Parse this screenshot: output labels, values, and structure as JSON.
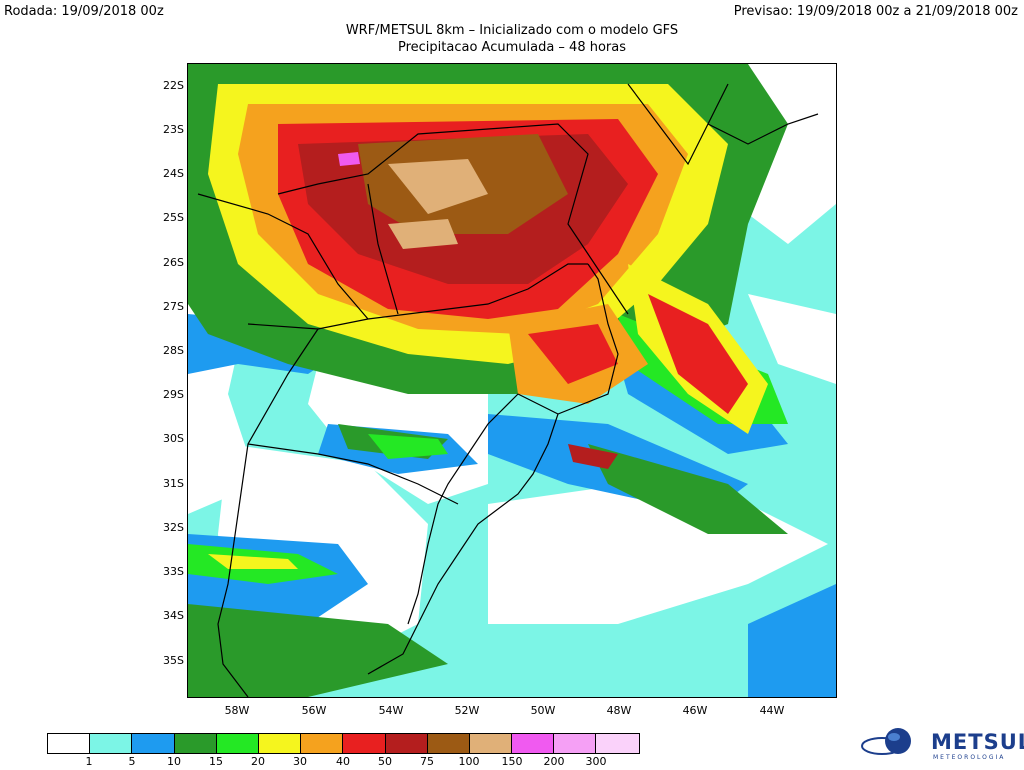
{
  "header": {
    "run_label": "Rodada: 19/09/2018 00z",
    "forecast_label": "Previsao: 19/09/2018 00z a 21/09/2018 00z",
    "title_line1": "WRF/METSUL 8km – Inicializado com o modelo GFS",
    "title_line2": "Precipitacao Acumulada – 48 horas"
  },
  "map": {
    "lat_labels": [
      "22S",
      "23S",
      "24S",
      "25S",
      "26S",
      "27S",
      "28S",
      "29S",
      "30S",
      "31S",
      "32S",
      "33S",
      "34S",
      "35S"
    ],
    "lon_labels": [
      "58W",
      "56W",
      "54W",
      "52W",
      "50W",
      "48W",
      "46W",
      "44W"
    ]
  },
  "legend": {
    "labels": [
      "1",
      "5",
      "10",
      "15",
      "20",
      "30",
      "40",
      "50",
      "75",
      "100",
      "150",
      "200",
      "300"
    ],
    "colors": [
      "#ffffff",
      "#7cf5e6",
      "#1e9bf0",
      "#2a9a2a",
      "#24e824",
      "#f5f51e",
      "#f5a21e",
      "#e82020",
      "#b41e1e",
      "#9c5a14",
      "#e0b078",
      "#f05af0",
      "#f5a0f5",
      "#fad2fa"
    ]
  },
  "logo": {
    "name": "METSUL",
    "subtitle": "METEOROLOGIA",
    "icon": "globe-swoosh-icon"
  }
}
